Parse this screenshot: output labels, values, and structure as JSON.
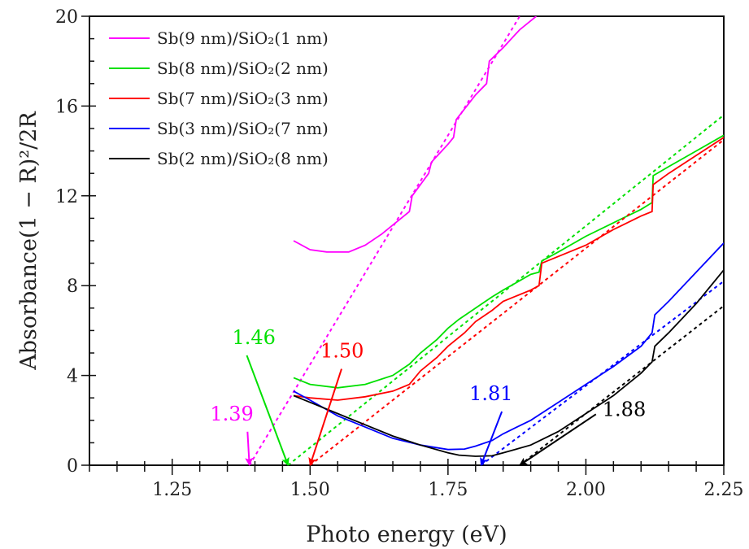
{
  "chart_data": {
    "type": "line",
    "xlabel": "Photo energy (eV)",
    "ylabel": "Absorbance(1 − R)²/2R",
    "xlim": [
      1.1,
      2.25
    ],
    "ylim": [
      0,
      20
    ],
    "xticks": [
      "1.25",
      "1.50",
      "1.75",
      "2.00",
      "2.25"
    ],
    "xtick_values": [
      1.25,
      1.5,
      1.75,
      2.0,
      2.25
    ],
    "yticks": [
      "0",
      "4",
      "8",
      "12",
      "16",
      "20"
    ],
    "ytick_values": [
      0,
      4,
      8,
      12,
      16,
      20
    ],
    "grid": false,
    "legend_placement": "top-left",
    "series": [
      {
        "name": "Sb(9 nm)/SiO₂(1 nm)",
        "color": "#ff00ff",
        "x": [
          1.47,
          1.5,
          1.53,
          1.57,
          1.6,
          1.63,
          1.66,
          1.68,
          1.685,
          1.7,
          1.715,
          1.72,
          1.75,
          1.76,
          1.765,
          1.8,
          1.82,
          1.825,
          1.85,
          1.88,
          1.91
        ],
        "y": [
          10.0,
          9.6,
          9.5,
          9.5,
          9.8,
          10.3,
          10.9,
          11.3,
          12.0,
          12.5,
          13.0,
          13.5,
          14.3,
          14.6,
          15.4,
          16.5,
          17.0,
          18.0,
          18.6,
          19.4,
          20.0
        ],
        "fit": {
          "x0": 1.39,
          "x1": 1.88,
          "y1": 20
        }
      },
      {
        "name": "Sb(8 nm)/SiO₂(2 nm)",
        "color": "#00e000",
        "x": [
          1.47,
          1.5,
          1.55,
          1.6,
          1.65,
          1.68,
          1.7,
          1.73,
          1.75,
          1.77,
          1.8,
          1.83,
          1.85,
          1.9,
          1.915,
          1.92,
          1.95,
          2.0,
          2.05,
          2.1,
          2.12,
          2.122,
          2.15,
          2.2,
          2.25
        ],
        "y": [
          3.9,
          3.6,
          3.45,
          3.6,
          4.0,
          4.5,
          5.0,
          5.6,
          6.1,
          6.5,
          7.0,
          7.5,
          7.8,
          8.5,
          8.6,
          9.1,
          9.5,
          10.2,
          10.8,
          11.4,
          11.7,
          12.9,
          13.3,
          14.0,
          14.7
        ],
        "fit": {
          "x0": 1.46,
          "x1": 2.25,
          "y1": 15.6
        }
      },
      {
        "name": "Sb(7 nm)/SiO₂(3 nm)",
        "color": "#ff0000",
        "x": [
          1.47,
          1.5,
          1.55,
          1.6,
          1.65,
          1.68,
          1.7,
          1.73,
          1.75,
          1.78,
          1.8,
          1.83,
          1.85,
          1.9,
          1.915,
          1.92,
          1.95,
          2.0,
          2.05,
          2.1,
          2.12,
          2.122,
          2.15,
          2.2,
          2.25
        ],
        "y": [
          3.1,
          3.0,
          2.9,
          3.05,
          3.3,
          3.6,
          4.2,
          4.8,
          5.3,
          5.9,
          6.4,
          6.9,
          7.3,
          7.8,
          8.0,
          9.0,
          9.3,
          9.8,
          10.5,
          11.1,
          11.3,
          12.5,
          13.0,
          13.8,
          14.6
        ],
        "fit": {
          "x0": 1.5,
          "x1": 2.25,
          "y1": 14.5
        }
      },
      {
        "name": "Sb(3 nm)/SiO₂(7 nm)",
        "color": "#0000ff",
        "x": [
          1.47,
          1.5,
          1.55,
          1.6,
          1.65,
          1.7,
          1.75,
          1.78,
          1.8,
          1.83,
          1.85,
          1.9,
          1.95,
          2.0,
          2.05,
          2.1,
          2.12,
          2.125,
          2.15,
          2.2,
          2.25
        ],
        "y": [
          3.3,
          2.9,
          2.2,
          1.7,
          1.2,
          0.9,
          0.7,
          0.72,
          0.85,
          1.1,
          1.4,
          2.0,
          2.8,
          3.6,
          4.4,
          5.3,
          5.9,
          6.7,
          7.3,
          8.6,
          9.9
        ],
        "fit": {
          "x0": 1.81,
          "x1": 2.25,
          "y1": 8.2
        }
      },
      {
        "name": "Sb(2 nm)/SiO₂(8 nm)",
        "color": "#000000",
        "x": [
          1.47,
          1.5,
          1.55,
          1.6,
          1.65,
          1.7,
          1.75,
          1.77,
          1.8,
          1.83,
          1.85,
          1.9,
          1.95,
          2.0,
          2.05,
          2.1,
          2.12,
          2.125,
          2.15,
          2.2,
          2.25
        ],
        "y": [
          3.1,
          2.8,
          2.3,
          1.8,
          1.3,
          0.9,
          0.55,
          0.45,
          0.4,
          0.42,
          0.55,
          0.9,
          1.5,
          2.3,
          3.1,
          4.1,
          4.6,
          5.3,
          5.9,
          7.2,
          8.7
        ],
        "fit": {
          "x0": 1.88,
          "x1": 2.25,
          "y1": 7.1
        }
      }
    ],
    "annotations": [
      {
        "text": "1.39",
        "color": "#ff00ff",
        "x": 1.39,
        "y": 0,
        "label_x": 1.36,
        "label_y": 2.0
      },
      {
        "text": "1.46",
        "color": "#00e000",
        "x": 1.46,
        "y": 0,
        "label_x": 1.4,
        "label_y": 5.4
      },
      {
        "text": "1.50",
        "color": "#ff0000",
        "x": 1.5,
        "y": 0,
        "label_x": 1.56,
        "label_y": 4.8
      },
      {
        "text": "1.81",
        "color": "#0000ff",
        "x": 1.81,
        "y": 0,
        "label_x": 1.83,
        "label_y": 2.9
      },
      {
        "text": "1.88",
        "color": "#000000",
        "x": 1.88,
        "y": 0,
        "label_x": 2.03,
        "label_y": 2.2
      }
    ]
  }
}
